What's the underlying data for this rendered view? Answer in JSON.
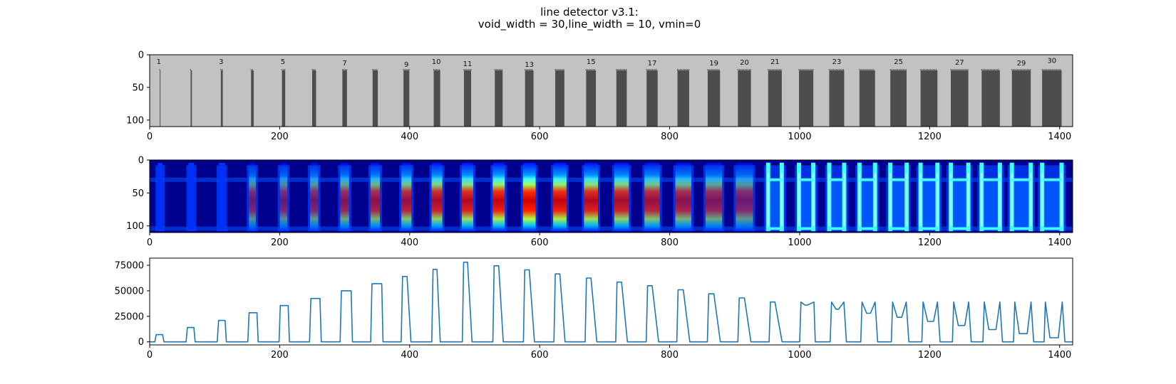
{
  "title": {
    "line1": "line detector v3.1:",
    "line2": "void_width = 30,line_width = 10, vmin=0"
  },
  "chart_data": [
    {
      "type": "image",
      "description_of_content": "grayscale test pattern: light gray background with dark vertical bars of increasing width; top rows blank",
      "colormap": "gray",
      "xlim": [
        0,
        1420
      ],
      "ylim": [
        110,
        0
      ],
      "xticks": [
        0,
        200,
        400,
        600,
        800,
        1000,
        1200,
        1400
      ],
      "yticks": [
        0,
        50,
        100
      ],
      "background_color": "#c2c2c2",
      "bar_color": "#4d4d4d",
      "bars": [
        {
          "x": 16,
          "width": 1
        },
        {
          "x": 64,
          "width": 2
        },
        {
          "x": 111,
          "width": 3
        },
        {
          "x": 158,
          "width": 4
        },
        {
          "x": 206,
          "width": 5
        },
        {
          "x": 253,
          "width": 6
        },
        {
          "x": 300,
          "width": 7
        },
        {
          "x": 347,
          "width": 8
        },
        {
          "x": 395,
          "width": 9
        },
        {
          "x": 442,
          "width": 10
        },
        {
          "x": 489,
          "width": 11
        },
        {
          "x": 537,
          "width": 12
        },
        {
          "x": 584,
          "width": 13
        },
        {
          "x": 631,
          "width": 14
        },
        {
          "x": 679,
          "width": 15
        },
        {
          "x": 726,
          "width": 16
        },
        {
          "x": 773,
          "width": 17
        },
        {
          "x": 821,
          "width": 18
        },
        {
          "x": 868,
          "width": 19
        },
        {
          "x": 915,
          "width": 20
        },
        {
          "x": 962,
          "width": 21
        },
        {
          "x": 1010,
          "width": 22
        },
        {
          "x": 1057,
          "width": 23
        },
        {
          "x": 1104,
          "width": 24
        },
        {
          "x": 1152,
          "width": 25
        },
        {
          "x": 1199,
          "width": 26
        },
        {
          "x": 1246,
          "width": 27
        },
        {
          "x": 1294,
          "width": 28
        },
        {
          "x": 1341,
          "width": 29
        },
        {
          "x": 1388,
          "width": 30
        }
      ],
      "bar_top_y": 24,
      "bar_bottom_y": 110,
      "labels": [
        {
          "text": "1",
          "x": 14,
          "y": 10
        },
        {
          "text": "3",
          "x": 110,
          "y": 10
        },
        {
          "text": "5",
          "x": 205,
          "y": 10
        },
        {
          "text": "7",
          "x": 300,
          "y": 12
        },
        {
          "text": "9",
          "x": 395,
          "y": 14
        },
        {
          "text": "10",
          "x": 441,
          "y": 10
        },
        {
          "text": "11",
          "x": 489,
          "y": 13
        },
        {
          "text": "13",
          "x": 584,
          "y": 14
        },
        {
          "text": "15",
          "x": 679,
          "y": 10
        },
        {
          "text": "17",
          "x": 773,
          "y": 12
        },
        {
          "text": "19",
          "x": 868,
          "y": 12
        },
        {
          "text": "20",
          "x": 915,
          "y": 11
        },
        {
          "text": "21",
          "x": 962,
          "y": 10
        },
        {
          "text": "23",
          "x": 1057,
          "y": 10
        },
        {
          "text": "25",
          "x": 1152,
          "y": 10
        },
        {
          "text": "27",
          "x": 1246,
          "y": 11
        },
        {
          "text": "29",
          "x": 1341,
          "y": 12
        },
        {
          "text": "30",
          "x": 1388,
          "y": 8
        }
      ]
    },
    {
      "type": "heatmap",
      "description_of_content": "jet-colormap filter response; vertical streaks at each bar position, hot (red) for mid widths, splitting into two edges for wide bars",
      "colormap": "jet",
      "xlim": [
        0,
        1420
      ],
      "ylim": [
        110,
        0
      ],
      "xticks": [
        0,
        200,
        400,
        600,
        800,
        1000,
        1200,
        1400
      ],
      "yticks": [
        0,
        50,
        100
      ],
      "background_color": "#00008f"
    },
    {
      "type": "line",
      "xlim": [
        0,
        1420
      ],
      "ylim": [
        -3000,
        82000
      ],
      "xticks": [
        0,
        200,
        400,
        600,
        800,
        1000,
        1200,
        1400
      ],
      "yticks": [
        0,
        25000,
        50000,
        75000
      ],
      "line_color": "#1f77b4",
      "x": [
        0,
        8,
        10,
        20,
        22,
        56,
        58,
        68,
        70,
        104,
        106,
        116,
        118,
        151,
        153,
        165,
        167,
        199,
        201,
        213,
        215,
        246,
        248,
        262,
        264,
        293,
        295,
        310,
        312,
        340,
        342,
        357,
        359,
        387,
        389,
        396,
        402,
        434,
        436,
        442,
        447,
        481,
        483,
        489,
        496,
        528,
        530,
        537,
        544,
        575,
        577,
        584,
        592,
        622,
        624,
        631,
        639,
        670,
        672,
        679,
        688,
        717,
        719,
        726,
        735,
        764,
        766,
        773,
        783,
        811,
        813,
        821,
        831,
        858,
        860,
        868,
        878,
        905,
        907,
        915,
        925,
        953,
        955,
        962,
        973,
        1000,
        1002,
        1008,
        1012,
        1022,
        1024,
        1047,
        1049,
        1056,
        1060,
        1068,
        1072,
        1094,
        1096,
        1103,
        1109,
        1116,
        1120,
        1141,
        1143,
        1150,
        1157,
        1164,
        1168,
        1188,
        1190,
        1197,
        1206,
        1212,
        1216,
        1235,
        1237,
        1244,
        1254,
        1260,
        1264,
        1282,
        1284,
        1291,
        1302,
        1308,
        1312,
        1329,
        1331,
        1338,
        1350,
        1356,
        1360,
        1376,
        1378,
        1385,
        1398,
        1404,
        1408,
        1420
      ],
      "y": [
        0,
        0,
        7000,
        7000,
        0,
        0,
        14000,
        14000,
        0,
        0,
        21000,
        21000,
        0,
        0,
        28500,
        28500,
        0,
        0,
        35500,
        35500,
        0,
        0,
        42500,
        42500,
        0,
        0,
        50000,
        50000,
        0,
        0,
        57000,
        57000,
        0,
        0,
        64000,
        64000,
        0,
        0,
        71000,
        71000,
        0,
        0,
        78000,
        78000,
        0,
        0,
        74500,
        74500,
        0,
        0,
        70500,
        70500,
        0,
        0,
        66500,
        66500,
        0,
        0,
        62500,
        62500,
        0,
        0,
        58500,
        58500,
        0,
        0,
        55000,
        55000,
        0,
        0,
        51000,
        51000,
        0,
        0,
        47000,
        47000,
        0,
        0,
        43000,
        43000,
        0,
        0,
        39000,
        39000,
        0,
        0,
        39000,
        36000,
        36000,
        39000,
        0,
        0,
        39000,
        32000,
        32000,
        39000,
        0,
        0,
        39000,
        28000,
        28000,
        39000,
        0,
        0,
        39000,
        24000,
        24000,
        39000,
        0,
        0,
        39000,
        20000,
        20000,
        39000,
        0,
        0,
        39000,
        16000,
        16000,
        39000,
        0,
        0,
        39000,
        12000,
        12000,
        39000,
        0,
        0,
        39000,
        8000,
        8000,
        39000,
        0,
        0,
        39000,
        4000,
        4000,
        39000,
        0,
        0
      ]
    }
  ]
}
